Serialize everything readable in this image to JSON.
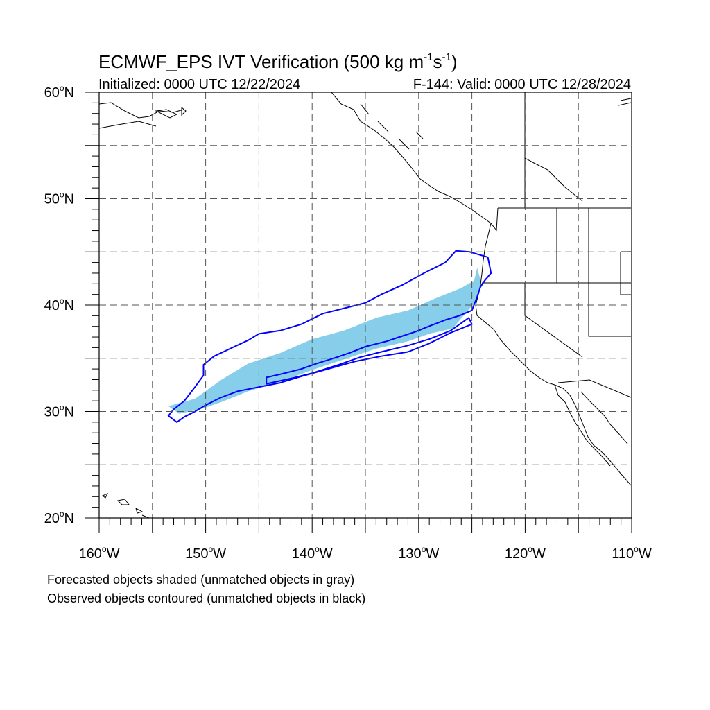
{
  "header": {
    "title_main": "ECMWF_EPS IVT Verification (500 kg m",
    "title_sup1": "-1",
    "title_s": "s",
    "title_sup2": "-1",
    "title_close": ")",
    "initialized": "Initialized: 0000 UTC 12/22/2024",
    "valid": "F-144: Valid: 0000 UTC 12/28/2024"
  },
  "axes": {
    "lat_labels": [
      {
        "value": 60,
        "num": "60",
        "deg": "o",
        "hemi": "N"
      },
      {
        "value": 50,
        "num": "50",
        "deg": "o",
        "hemi": "N"
      },
      {
        "value": 40,
        "num": "40",
        "deg": "o",
        "hemi": "N"
      },
      {
        "value": 30,
        "num": "30",
        "deg": "o",
        "hemi": "N"
      },
      {
        "value": 20,
        "num": "20",
        "deg": "o",
        "hemi": "N"
      }
    ],
    "lon_labels": [
      {
        "value": -160,
        "num": "160",
        "deg": "o",
        "hemi": "W"
      },
      {
        "value": -150,
        "num": "150",
        "deg": "o",
        "hemi": "W"
      },
      {
        "value": -140,
        "num": "140",
        "deg": "o",
        "hemi": "W"
      },
      {
        "value": -130,
        "num": "130",
        "deg": "o",
        "hemi": "W"
      },
      {
        "value": -120,
        "num": "120",
        "deg": "o",
        "hemi": "W"
      },
      {
        "value": -110,
        "num": "110",
        "deg": "o",
        "hemi": "W"
      }
    ],
    "lat_range": [
      20,
      60
    ],
    "lon_range": [
      -160,
      -110
    ],
    "grid": "dashed every 5 degrees"
  },
  "colors": {
    "forecast_fill": "#87ceeb",
    "observed_contour": "#0000ff",
    "coastline": "#000000",
    "grid": "#555555"
  },
  "legend": {
    "line1": "Forecasted objects shaded (unmatched objects in gray)",
    "line2": "Observed objects contoured (unmatched objects in black)"
  },
  "objects": {
    "forecast_shaded": {
      "color": "#87ceeb",
      "outline_lonlat": [
        [
          -153.5,
          30.5
        ],
        [
          -151,
          31.2
        ],
        [
          -148.5,
          33
        ],
        [
          -146,
          34.5
        ],
        [
          -143,
          35.5
        ],
        [
          -140,
          36.8
        ],
        [
          -137,
          37.6
        ],
        [
          -134,
          38.8
        ],
        [
          -131,
          39.5
        ],
        [
          -128.5,
          40.6
        ],
        [
          -126,
          41.6
        ],
        [
          -124.8,
          42.3
        ],
        [
          -124.5,
          43.5
        ],
        [
          -124.1,
          42
        ],
        [
          -124.6,
          40.3
        ],
        [
          -125.2,
          39.7
        ],
        [
          -126.8,
          37.8
        ],
        [
          -129,
          37.3
        ],
        [
          -131,
          36.6
        ],
        [
          -134,
          35.9
        ],
        [
          -137,
          34.9
        ],
        [
          -140,
          33.9
        ],
        [
          -143,
          32.8
        ],
        [
          -146,
          31.9
        ],
        [
          -148.5,
          30.9
        ],
        [
          -150.5,
          30.2
        ],
        [
          -152.5,
          29.8
        ]
      ]
    },
    "observed_contours": [
      {
        "color": "#0000ff",
        "outline_lonlat": [
          [
            -153.5,
            29.6
          ],
          [
            -153,
            30.2
          ],
          [
            -152,
            31
          ],
          [
            -151,
            32.3
          ],
          [
            -150.2,
            33.4
          ],
          [
            -150.2,
            34.4
          ],
          [
            -149.2,
            35.2
          ],
          [
            -147.5,
            36
          ],
          [
            -146,
            36.7
          ],
          [
            -145,
            37.3
          ],
          [
            -143,
            37.6
          ],
          [
            -141,
            38.2
          ],
          [
            -139,
            39.2
          ],
          [
            -137,
            39.7
          ],
          [
            -135,
            40.2
          ],
          [
            -133.5,
            41
          ],
          [
            -131.5,
            41.9
          ],
          [
            -129.5,
            43
          ],
          [
            -127.5,
            44
          ],
          [
            -126.5,
            45.1
          ],
          [
            -125.2,
            45
          ],
          [
            -123.5,
            44.5
          ],
          [
            -123.2,
            43
          ],
          [
            -123.8,
            42.3
          ],
          [
            -124.2,
            41.7
          ],
          [
            -124.5,
            40.8
          ],
          [
            -125,
            39.5
          ],
          [
            -126.2,
            39
          ],
          [
            -127.5,
            38.6
          ],
          [
            -128.8,
            38.1
          ],
          [
            -130.3,
            37.5
          ],
          [
            -131.8,
            37
          ],
          [
            -133,
            36.6
          ],
          [
            -135,
            36.1
          ],
          [
            -136.5,
            35.5
          ],
          [
            -138,
            35
          ],
          [
            -139.6,
            34.5
          ],
          [
            -141,
            34
          ],
          [
            -143,
            33.5
          ],
          [
            -144.3,
            33.2
          ],
          [
            -144.3,
            32.6
          ],
          [
            -142,
            33.1
          ],
          [
            -140,
            33.6
          ],
          [
            -137.5,
            34.4
          ],
          [
            -135.5,
            35.1
          ],
          [
            -133.5,
            35.6
          ],
          [
            -131,
            36.2
          ],
          [
            -129,
            36.8
          ],
          [
            -127,
            37.6
          ],
          [
            -125.3,
            38.8
          ],
          [
            -125,
            38.2
          ],
          [
            -127,
            37.4
          ],
          [
            -129,
            36.4
          ],
          [
            -131,
            35.6
          ],
          [
            -133.5,
            35.2
          ],
          [
            -136,
            34.7
          ],
          [
            -138.5,
            34
          ],
          [
            -141,
            33.3
          ],
          [
            -143,
            32.7
          ],
          [
            -145,
            32.3
          ],
          [
            -147,
            31.9
          ],
          [
            -148.6,
            31.3
          ],
          [
            -150,
            30.6
          ],
          [
            -151,
            30
          ],
          [
            -152,
            29.5
          ],
          [
            -152.7,
            29
          ]
        ]
      }
    ]
  }
}
